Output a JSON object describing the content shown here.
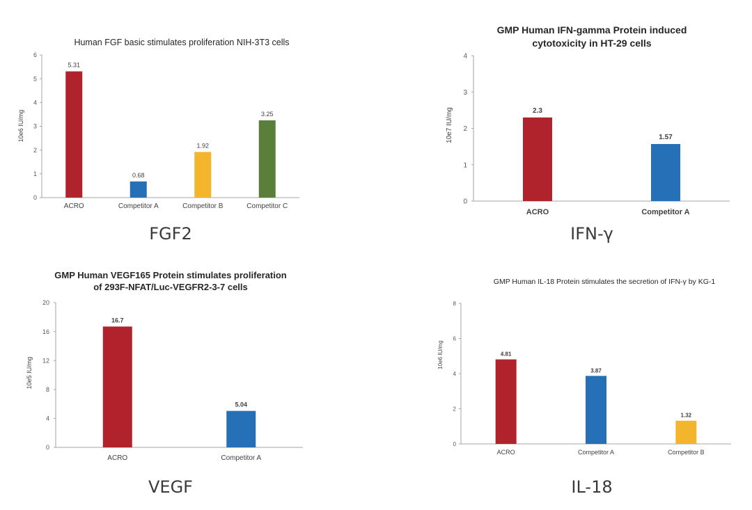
{
  "colors": {
    "acro": "#b0232c",
    "competitor_a": "#2670b8",
    "competitor_b": "#f3b52c",
    "competitor_c": "#5b7f3a"
  },
  "chart_data": [
    {
      "type": "bar",
      "title": "Human FGF basic  stimulates proliferation NIH-3T3 cells",
      "ylabel": "10e6 IU/mg",
      "xlabel": "",
      "caption": "FGF2",
      "categories": [
        "ACRO",
        "Competitor A",
        "Competitor B",
        "Competitor C"
      ],
      "values": [
        5.31,
        0.68,
        1.92,
        3.25
      ],
      "value_labels": [
        "5.31",
        "0.68",
        "1.92",
        "3.25"
      ],
      "bar_colors": [
        "#b0232c",
        "#2670b8",
        "#f3b52c",
        "#5b7f3a"
      ],
      "ylim": [
        0,
        6
      ],
      "yticks": [
        "0",
        "1",
        "2",
        "3",
        "4",
        "5",
        "6"
      ],
      "grid": false
    },
    {
      "type": "bar",
      "title": "GMP Human IFN-gamma Protein induced cytotoxicity in HT-29 cells",
      "title_lines": [
        "GMP Human IFN-gamma Protein induced",
        "cytotoxicity in HT-29 cells"
      ],
      "ylabel": "10e7 IU/mg",
      "xlabel": "",
      "caption": "IFN-γ",
      "categories": [
        "ACRO",
        "Competitor A"
      ],
      "values": [
        2.3,
        1.57
      ],
      "value_labels": [
        "2.3",
        "1.57"
      ],
      "bar_colors": [
        "#b0232c",
        "#2670b8"
      ],
      "ylim": [
        0,
        4
      ],
      "yticks": [
        "0",
        "1",
        "2",
        "3",
        "4"
      ],
      "grid": false
    },
    {
      "type": "bar",
      "title": "GMP Human VEGF165 Protein stimulates proliferation of 293F-NFAT/Luc-VEGFR2-3-7 cells",
      "title_lines": [
        "GMP Human VEGF165 Protein stimulates proliferation",
        "of 293F-NFAT/Luc-VEGFR2-3-7 cells"
      ],
      "ylabel": "10e5 IU/mg",
      "xlabel": "",
      "caption": "VEGF",
      "categories": [
        "ACRO",
        "Competitor A"
      ],
      "values": [
        16.7,
        5.04
      ],
      "value_labels": [
        "16.7",
        "5.04"
      ],
      "bar_colors": [
        "#b0232c",
        "#2670b8"
      ],
      "ylim": [
        0,
        20
      ],
      "yticks": [
        "0",
        "4",
        "8",
        "12",
        "16",
        "20"
      ],
      "grid": false
    },
    {
      "type": "bar",
      "title": "GMP Human IL-18 Protein stimulates the secretion of IFN-γ by KG-1",
      "ylabel": "10e6 IU/mg",
      "xlabel": "",
      "caption": "IL-18",
      "categories": [
        "ACRO",
        "Competitor A",
        "Competitor B"
      ],
      "values": [
        4.81,
        3.87,
        1.32
      ],
      "value_labels": [
        "4.81",
        "3.87",
        "1.32"
      ],
      "bar_colors": [
        "#b0232c",
        "#2670b8",
        "#f3b52c"
      ],
      "ylim": [
        0,
        8
      ],
      "yticks": [
        "0",
        "2",
        "4",
        "6",
        "8"
      ],
      "grid": false
    }
  ]
}
